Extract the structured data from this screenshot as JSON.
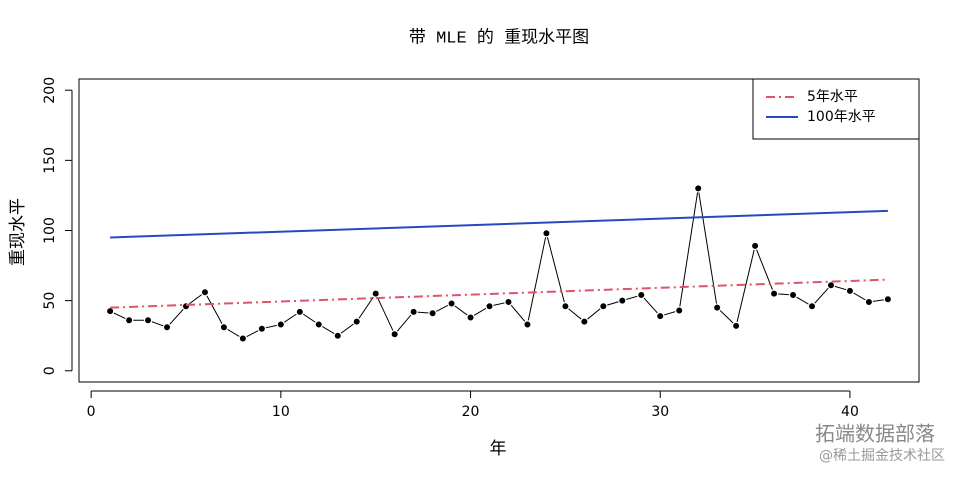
{
  "chart_data": {
    "type": "line",
    "title": "带 MLE 的 重现水平图",
    "x_label": "年",
    "y_label": "重现水平",
    "xlim": [
      -0.64,
      43.64
    ],
    "xticks": [
      0,
      10,
      20,
      30,
      40
    ],
    "ylim": [
      -8,
      208
    ],
    "yticks": [
      0,
      50,
      100,
      150,
      200
    ],
    "legend": "top-right",
    "series": [
      {
        "color": "#000000",
        "markers": true,
        "x": [
          1,
          2,
          3,
          4,
          5,
          6,
          7,
          8,
          9,
          10,
          11,
          12,
          13,
          14,
          15,
          16,
          17,
          18,
          19,
          20,
          21,
          22,
          23,
          24,
          25,
          26,
          27,
          28,
          29,
          30,
          31,
          32,
          33,
          34,
          35,
          36,
          37,
          38,
          39,
          40,
          41,
          42
        ],
        "values": [
          42.5,
          36,
          36,
          31,
          46,
          56,
          31,
          23,
          30,
          33,
          42,
          33,
          25,
          35,
          55,
          26,
          42,
          41,
          48,
          38,
          46,
          49,
          33,
          98,
          46,
          35,
          46,
          50,
          54,
          39,
          43,
          130,
          45,
          32,
          89,
          55,
          54,
          46,
          61,
          57,
          49,
          51
        ]
      },
      {
        "name": "5年水平",
        "color": "#df536b",
        "dash": "9 4 2 4",
        "x": [
          1,
          42
        ],
        "values": [
          45,
          65
        ]
      },
      {
        "name": "100年水平",
        "color": "#2a47c2",
        "x": [
          1,
          42
        ],
        "values": [
          95,
          114
        ]
      }
    ]
  },
  "watermark": [
    "拓端数据部落",
    "@稀土掘金技术社区"
  ]
}
